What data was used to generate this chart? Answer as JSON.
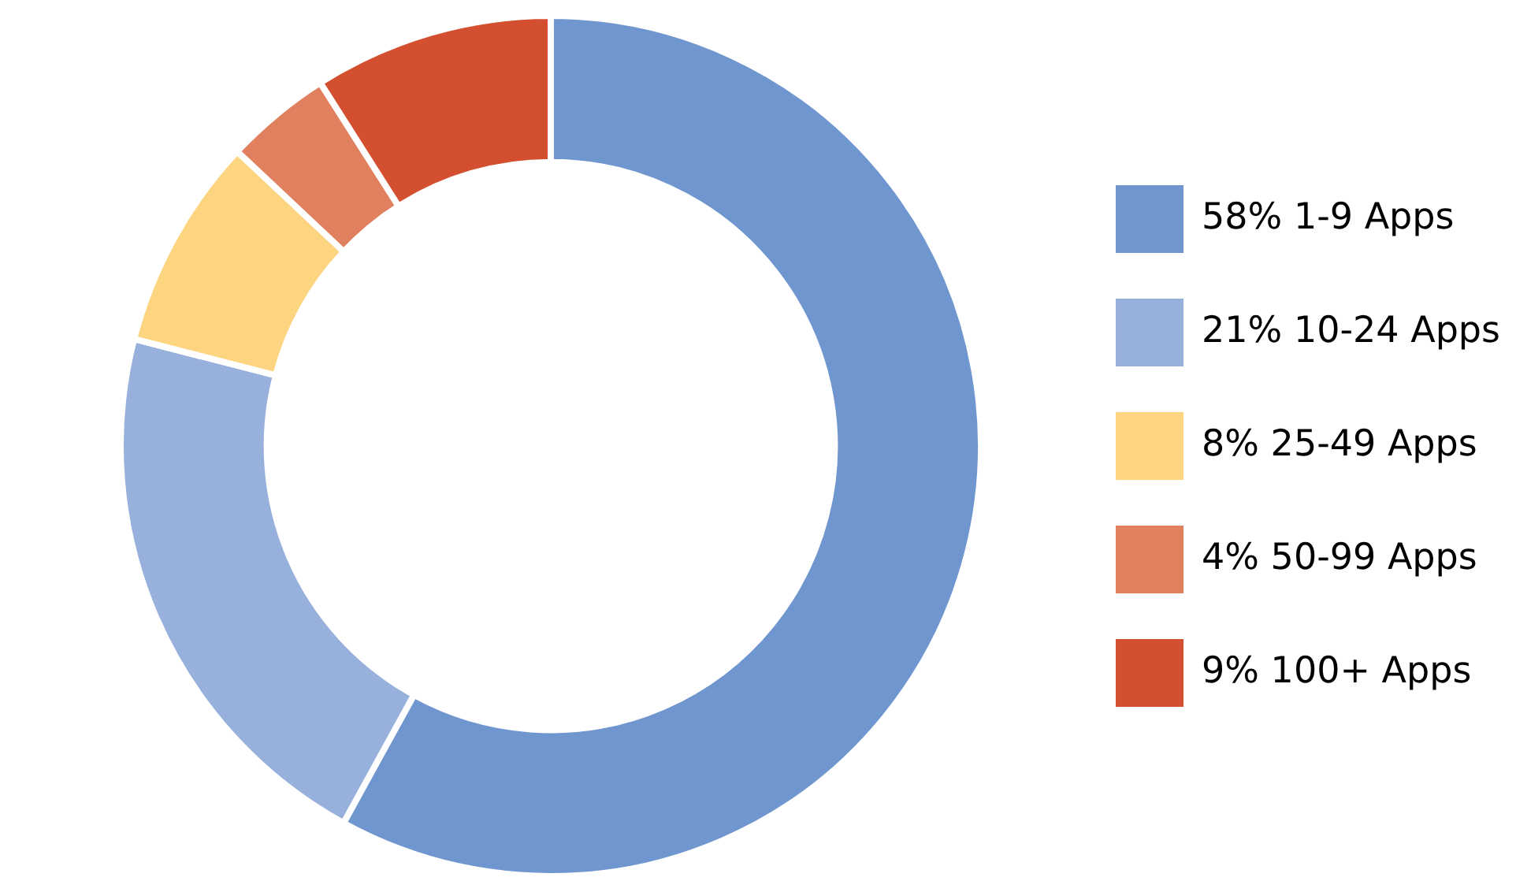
{
  "chart_data": {
    "type": "donut",
    "categories": [
      "1-9 Apps",
      "10-24 Apps",
      "25-49 Apps",
      "50-99 Apps",
      "100+ Apps"
    ],
    "values": [
      58,
      21,
      8,
      4,
      9
    ],
    "value_labels": [
      "58%",
      "21%",
      "8%",
      "4%",
      "9%"
    ],
    "colors": [
      "#7096cf",
      "#98b0dc",
      "#fdd47f",
      "#e0805e",
      "#d44f2f"
    ],
    "legend": "right"
  }
}
